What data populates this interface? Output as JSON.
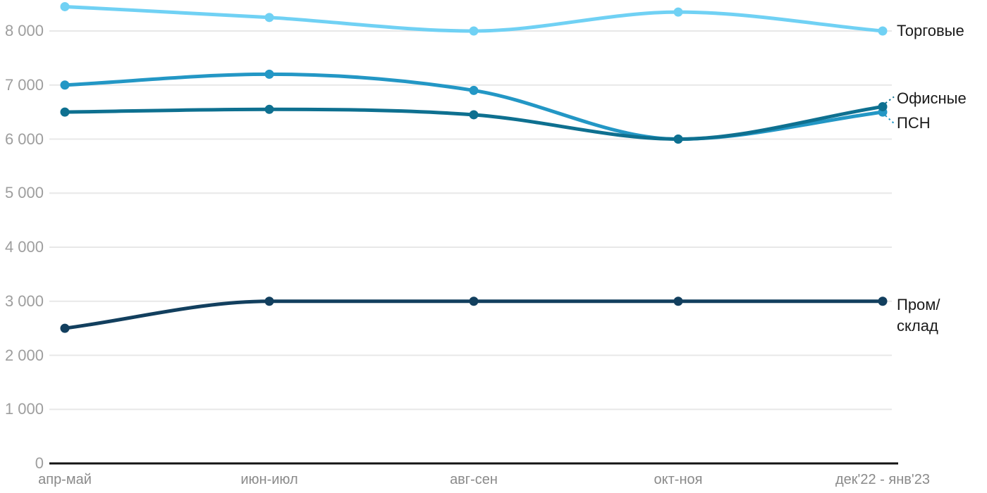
{
  "chart_data": {
    "type": "line",
    "title": "",
    "xlabel": "",
    "ylabel": "",
    "categories": [
      "апр-май",
      "июн-июл",
      "авг-сен",
      "окт-ноя",
      "дек'22 - янв'23"
    ],
    "series": [
      {
        "id": "retail",
        "name": "Торговые",
        "color": "#70d1f4",
        "values": [
          8450,
          8250,
          8000,
          8350,
          8000
        ],
        "label_lines": [
          "Торговые"
        ],
        "label_dy": 0
      },
      {
        "id": "psn",
        "name": "ПСН",
        "color": "#2397c5",
        "values": [
          7000,
          7200,
          6900,
          6000,
          6500
        ],
        "label_lines": [
          "ПСН"
        ],
        "label_dy": 16,
        "leader": "down"
      },
      {
        "id": "office",
        "name": "Офисные",
        "color": "#0e7090",
        "values": [
          6500,
          6550,
          6450,
          6000,
          6600
        ],
        "label_lines": [
          "Офисные"
        ],
        "label_dy": -11,
        "leader": "up"
      },
      {
        "id": "industrial",
        "name": "Пром/склад",
        "color": "#123f5e",
        "values": [
          2500,
          3000,
          3000,
          3000,
          3000
        ],
        "label_lines": [
          "Пром/",
          "склад"
        ],
        "label_dy": 5
      }
    ],
    "ylim": [
      0,
      8000
    ],
    "yticks": [
      {
        "value": 0,
        "label": "0"
      },
      {
        "value": 1000,
        "label": "1 000"
      },
      {
        "value": 2000,
        "label": "2 000"
      },
      {
        "value": 3000,
        "label": "3 000"
      },
      {
        "value": 4000,
        "label": "4 000"
      },
      {
        "value": 5000,
        "label": "5 000"
      },
      {
        "value": 6000,
        "label": "6 000"
      },
      {
        "value": 7000,
        "label": "7 000"
      },
      {
        "value": 8000,
        "label": "8 000"
      }
    ],
    "grid": "horizontal",
    "legend_position": "right-of-line-end",
    "colors": {
      "gridline": "#e8e8e8",
      "zero_axis": "#141414",
      "y_tick_text": "#9e9e9e",
      "x_tick_text": "#8a8a8a",
      "series_label_text": "#1a1a1a"
    }
  }
}
